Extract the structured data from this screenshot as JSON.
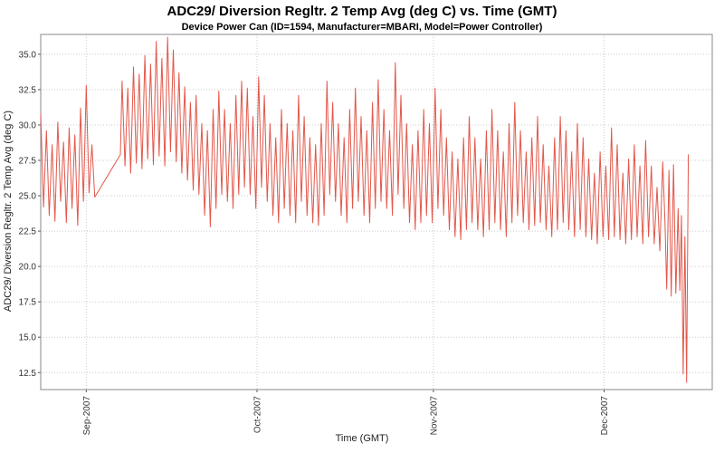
{
  "chart_data": {
    "type": "line",
    "title": "ADC29/ Diversion Regltr. 2 Temp Avg (deg C) vs. Time (GMT)",
    "subtitle": "Device Power Can (ID=1594, Manufacturer=MBARI, Model=Power Controller)",
    "xlabel": "Time (GMT)",
    "ylabel": "ADC29/ Diversion Regltr. 2 Temp Avg (deg C)",
    "grid": true,
    "legend": "none",
    "xlim": [
      0,
      118
    ],
    "ylim": [
      11.3,
      36.4
    ],
    "x_axis_note": "days, late Aug 2007 through mid Dec 2007; month ticks below",
    "x_ticks": [
      {
        "x": 8,
        "label": "Sep-2007"
      },
      {
        "x": 38,
        "label": "Oct-2007"
      },
      {
        "x": 69,
        "label": "Nov-2007"
      },
      {
        "x": 99,
        "label": "Dec-2007"
      }
    ],
    "y_ticks": [
      {
        "value": 12.5,
        "label": "12.5"
      },
      {
        "value": 15.0,
        "label": "15.0"
      },
      {
        "value": 17.5,
        "label": "17.5"
      },
      {
        "value": 20.0,
        "label": "20.0"
      },
      {
        "value": 22.5,
        "label": "22.5"
      },
      {
        "value": 25.0,
        "label": "25.0"
      },
      {
        "value": 27.5,
        "label": "27.5"
      },
      {
        "value": 30.0,
        "label": "30.0"
      },
      {
        "value": 32.5,
        "label": "32.5"
      },
      {
        "value": 35.0,
        "label": "35.0"
      }
    ],
    "colors": {
      "series": "#e2574a",
      "grid": "#cccccc",
      "border": "#888888",
      "axis": "#555555",
      "text": "#333333"
    },
    "series": [
      {
        "name": "ADC29/ Diversion Regltr. 2 Temp Avg (deg C)",
        "points": [
          [
            0,
            30.8
          ],
          [
            0.5,
            24.2
          ],
          [
            1,
            29.6
          ],
          [
            1.5,
            23.6
          ],
          [
            2,
            28.6
          ],
          [
            2.5,
            23.2
          ],
          [
            3,
            30.2
          ],
          [
            3.5,
            24.6
          ],
          [
            4,
            28.8
          ],
          [
            4.5,
            23.1
          ],
          [
            5,
            29.8
          ],
          [
            5.5,
            24.1
          ],
          [
            6,
            29.3
          ],
          [
            6.5,
            22.9
          ],
          [
            7,
            31.2
          ],
          [
            7.5,
            24.6
          ],
          [
            8,
            32.8
          ],
          [
            8.5,
            25.2
          ],
          [
            9,
            28.6
          ],
          [
            9.5,
            24.9
          ],
          [
            14,
            27.9
          ],
          [
            14.3,
            33.1
          ],
          [
            14.8,
            27.1
          ],
          [
            15.3,
            32.6
          ],
          [
            15.8,
            26.6
          ],
          [
            16.3,
            34.1
          ],
          [
            16.8,
            27.3
          ],
          [
            17.3,
            33.6
          ],
          [
            17.8,
            26.9
          ],
          [
            18.3,
            34.9
          ],
          [
            18.8,
            27.6
          ],
          [
            19.3,
            34.3
          ],
          [
            19.8,
            27.2
          ],
          [
            20.3,
            35.9
          ],
          [
            20.8,
            27.8
          ],
          [
            21.3,
            34.7
          ],
          [
            21.8,
            27.1
          ],
          [
            22.3,
            36.2
          ],
          [
            22.8,
            28.1
          ],
          [
            23.3,
            35.3
          ],
          [
            23.8,
            27.4
          ],
          [
            24.3,
            33.7
          ],
          [
            24.8,
            26.6
          ],
          [
            25.3,
            32.7
          ],
          [
            25.8,
            26.1
          ],
          [
            26.3,
            31.6
          ],
          [
            26.8,
            25.4
          ],
          [
            27.3,
            32.1
          ],
          [
            27.8,
            25.1
          ],
          [
            28.3,
            30.1
          ],
          [
            28.8,
            23.6
          ],
          [
            29.3,
            29.6
          ],
          [
            29.8,
            22.8
          ],
          [
            30.3,
            31.1
          ],
          [
            30.8,
            24.1
          ],
          [
            31.3,
            32.4
          ],
          [
            31.8,
            25.1
          ],
          [
            32.3,
            31.1
          ],
          [
            32.8,
            24.6
          ],
          [
            33.3,
            30.1
          ],
          [
            33.8,
            24.1
          ],
          [
            34.3,
            32.1
          ],
          [
            34.8,
            25.1
          ],
          [
            35.3,
            33.1
          ],
          [
            35.8,
            25.6
          ],
          [
            36.3,
            32.6
          ],
          [
            36.8,
            25.1
          ],
          [
            37.3,
            30.6
          ],
          [
            37.8,
            24.1
          ],
          [
            38.3,
            33.4
          ],
          [
            38.8,
            25.6
          ],
          [
            39.3,
            32.1
          ],
          [
            39.8,
            24.6
          ],
          [
            40.3,
            30.1
          ],
          [
            40.8,
            23.6
          ],
          [
            41.3,
            29.1
          ],
          [
            41.8,
            23.1
          ],
          [
            42.3,
            31.1
          ],
          [
            42.8,
            24.1
          ],
          [
            43.3,
            30.1
          ],
          [
            43.8,
            23.6
          ],
          [
            44.3,
            29.6
          ],
          [
            44.8,
            23.1
          ],
          [
            45.3,
            32.1
          ],
          [
            45.8,
            24.6
          ],
          [
            46.3,
            30.6
          ],
          [
            46.8,
            23.6
          ],
          [
            47.3,
            29.1
          ],
          [
            47.8,
            23.1
          ],
          [
            48.3,
            28.6
          ],
          [
            48.8,
            22.9
          ],
          [
            49.3,
            30.1
          ],
          [
            49.8,
            23.6
          ],
          [
            50.3,
            33.1
          ],
          [
            50.8,
            25.1
          ],
          [
            51.3,
            31.6
          ],
          [
            51.8,
            24.6
          ],
          [
            52.3,
            30.1
          ],
          [
            52.8,
            23.6
          ],
          [
            53.3,
            29.1
          ],
          [
            53.8,
            23.1
          ],
          [
            54.3,
            31.1
          ],
          [
            54.8,
            24.1
          ],
          [
            55.3,
            32.6
          ],
          [
            55.8,
            24.6
          ],
          [
            56.3,
            30.6
          ],
          [
            56.8,
            23.6
          ],
          [
            57.3,
            29.6
          ],
          [
            57.8,
            23.1
          ],
          [
            58.3,
            31.6
          ],
          [
            58.8,
            24.1
          ],
          [
            59.3,
            33.2
          ],
          [
            59.8,
            24.6
          ],
          [
            60.3,
            31.1
          ],
          [
            60.8,
            24.1
          ],
          [
            61.3,
            29.6
          ],
          [
            61.8,
            23.6
          ],
          [
            62.3,
            34.4
          ],
          [
            62.8,
            25.1
          ],
          [
            63.3,
            32.1
          ],
          [
            63.8,
            24.1
          ],
          [
            64.3,
            30.1
          ],
          [
            64.8,
            23.1
          ],
          [
            65.3,
            28.6
          ],
          [
            65.8,
            22.6
          ],
          [
            66.3,
            29.6
          ],
          [
            66.8,
            23.1
          ],
          [
            67.3,
            31.1
          ],
          [
            67.8,
            23.6
          ],
          [
            68.3,
            30.1
          ],
          [
            68.8,
            23.1
          ],
          [
            69.3,
            32.6
          ],
          [
            69.8,
            24.1
          ],
          [
            70.3,
            31.1
          ],
          [
            70.8,
            23.6
          ],
          [
            71.3,
            29.1
          ],
          [
            71.8,
            22.6
          ],
          [
            72.3,
            28.1
          ],
          [
            72.8,
            22.1
          ],
          [
            73.3,
            27.6
          ],
          [
            73.8,
            21.9
          ],
          [
            74.3,
            29.1
          ],
          [
            74.8,
            22.6
          ],
          [
            75.3,
            30.6
          ],
          [
            75.8,
            23.1
          ],
          [
            76.3,
            29.1
          ],
          [
            76.8,
            22.6
          ],
          [
            77.3,
            27.6
          ],
          [
            77.8,
            22.1
          ],
          [
            78.3,
            29.6
          ],
          [
            78.8,
            22.6
          ],
          [
            79.3,
            31.1
          ],
          [
            79.8,
            23.1
          ],
          [
            80.3,
            29.6
          ],
          [
            80.8,
            22.6
          ],
          [
            81.3,
            28.1
          ],
          [
            81.8,
            22.1
          ],
          [
            82.3,
            30.1
          ],
          [
            82.8,
            23.1
          ],
          [
            83.3,
            31.6
          ],
          [
            83.8,
            23.6
          ],
          [
            84.3,
            29.6
          ],
          [
            84.8,
            23.1
          ],
          [
            85.3,
            28.1
          ],
          [
            85.8,
            22.6
          ],
          [
            86.3,
            29.1
          ],
          [
            86.8,
            22.9
          ],
          [
            87.3,
            30.6
          ],
          [
            87.8,
            23.1
          ],
          [
            88.3,
            28.6
          ],
          [
            88.8,
            22.6
          ],
          [
            89.3,
            27.1
          ],
          [
            89.8,
            22.1
          ],
          [
            90.3,
            29.1
          ],
          [
            90.8,
            22.6
          ],
          [
            91.3,
            30.6
          ],
          [
            91.8,
            23.1
          ],
          [
            92.3,
            29.6
          ],
          [
            92.8,
            22.6
          ],
          [
            93.3,
            28.1
          ],
          [
            93.8,
            22.1
          ],
          [
            94.3,
            30.1
          ],
          [
            94.8,
            22.6
          ],
          [
            95.3,
            29.1
          ],
          [
            95.8,
            22.1
          ],
          [
            96.3,
            27.6
          ],
          [
            96.8,
            21.9
          ],
          [
            97.3,
            26.6
          ],
          [
            97.8,
            21.6
          ],
          [
            98.3,
            28.1
          ],
          [
            98.8,
            22.1
          ],
          [
            99.3,
            27.1
          ],
          [
            99.8,
            21.9
          ],
          [
            100.3,
            29.8
          ],
          [
            100.8,
            22.1
          ],
          [
            101.3,
            28.6
          ],
          [
            101.8,
            21.9
          ],
          [
            102.3,
            26.6
          ],
          [
            102.8,
            21.6
          ],
          [
            103.3,
            27.6
          ],
          [
            103.8,
            21.9
          ],
          [
            104.3,
            28.6
          ],
          [
            104.8,
            22.1
          ],
          [
            105.3,
            27.1
          ],
          [
            105.8,
            21.6
          ],
          [
            106.3,
            28.9
          ],
          [
            106.8,
            22.1
          ],
          [
            107.3,
            27.1
          ],
          [
            107.8,
            21.6
          ],
          [
            108.3,
            25.6
          ],
          [
            108.8,
            21.1
          ],
          [
            109.3,
            27.4
          ],
          [
            109.7,
            23.1
          ],
          [
            110,
            18.4
          ],
          [
            110.4,
            26.8
          ],
          [
            110.8,
            17.9
          ],
          [
            111.2,
            27.2
          ],
          [
            111.6,
            18.1
          ],
          [
            112,
            24.1
          ],
          [
            112.3,
            18.3
          ],
          [
            112.6,
            23.6
          ],
          [
            112.9,
            12.4
          ],
          [
            113.2,
            22.1
          ],
          [
            113.5,
            11.8
          ],
          [
            113.8,
            27.9
          ]
        ]
      }
    ]
  }
}
